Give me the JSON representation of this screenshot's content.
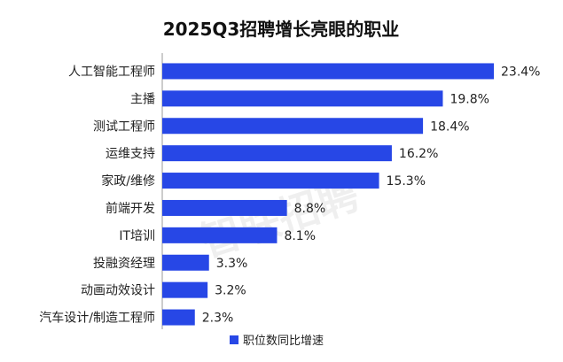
{
  "chart_data": {
    "type": "bar",
    "orientation": "horizontal",
    "title": "2025Q3招聘增长亮眼的职业",
    "categories": [
      "人工智能工程师",
      "主播",
      "测试工程师",
      "运维支持",
      "家政/维修",
      "前端开发",
      "IT培训",
      "投融资经理",
      "动画动效设计",
      "汽车设计/制造工程师"
    ],
    "series": [
      {
        "name": "职位数同比增速",
        "values": [
          23.4,
          19.8,
          18.4,
          16.2,
          15.3,
          8.8,
          8.1,
          3.3,
          3.2,
          2.3
        ],
        "value_labels": [
          "23.4%",
          "19.8%",
          "18.4%",
          "16.2%",
          "15.3%",
          "8.8%",
          "8.1%",
          "3.3%",
          "3.2%",
          "2.3%"
        ],
        "color": "#2747e6"
      }
    ],
    "xlim": [
      0,
      23.4
    ],
    "grid": false,
    "legend_position": "bottom-center",
    "axis_line_color": "#9a9a9a"
  },
  "watermark": {
    "text": "智联招聘"
  }
}
